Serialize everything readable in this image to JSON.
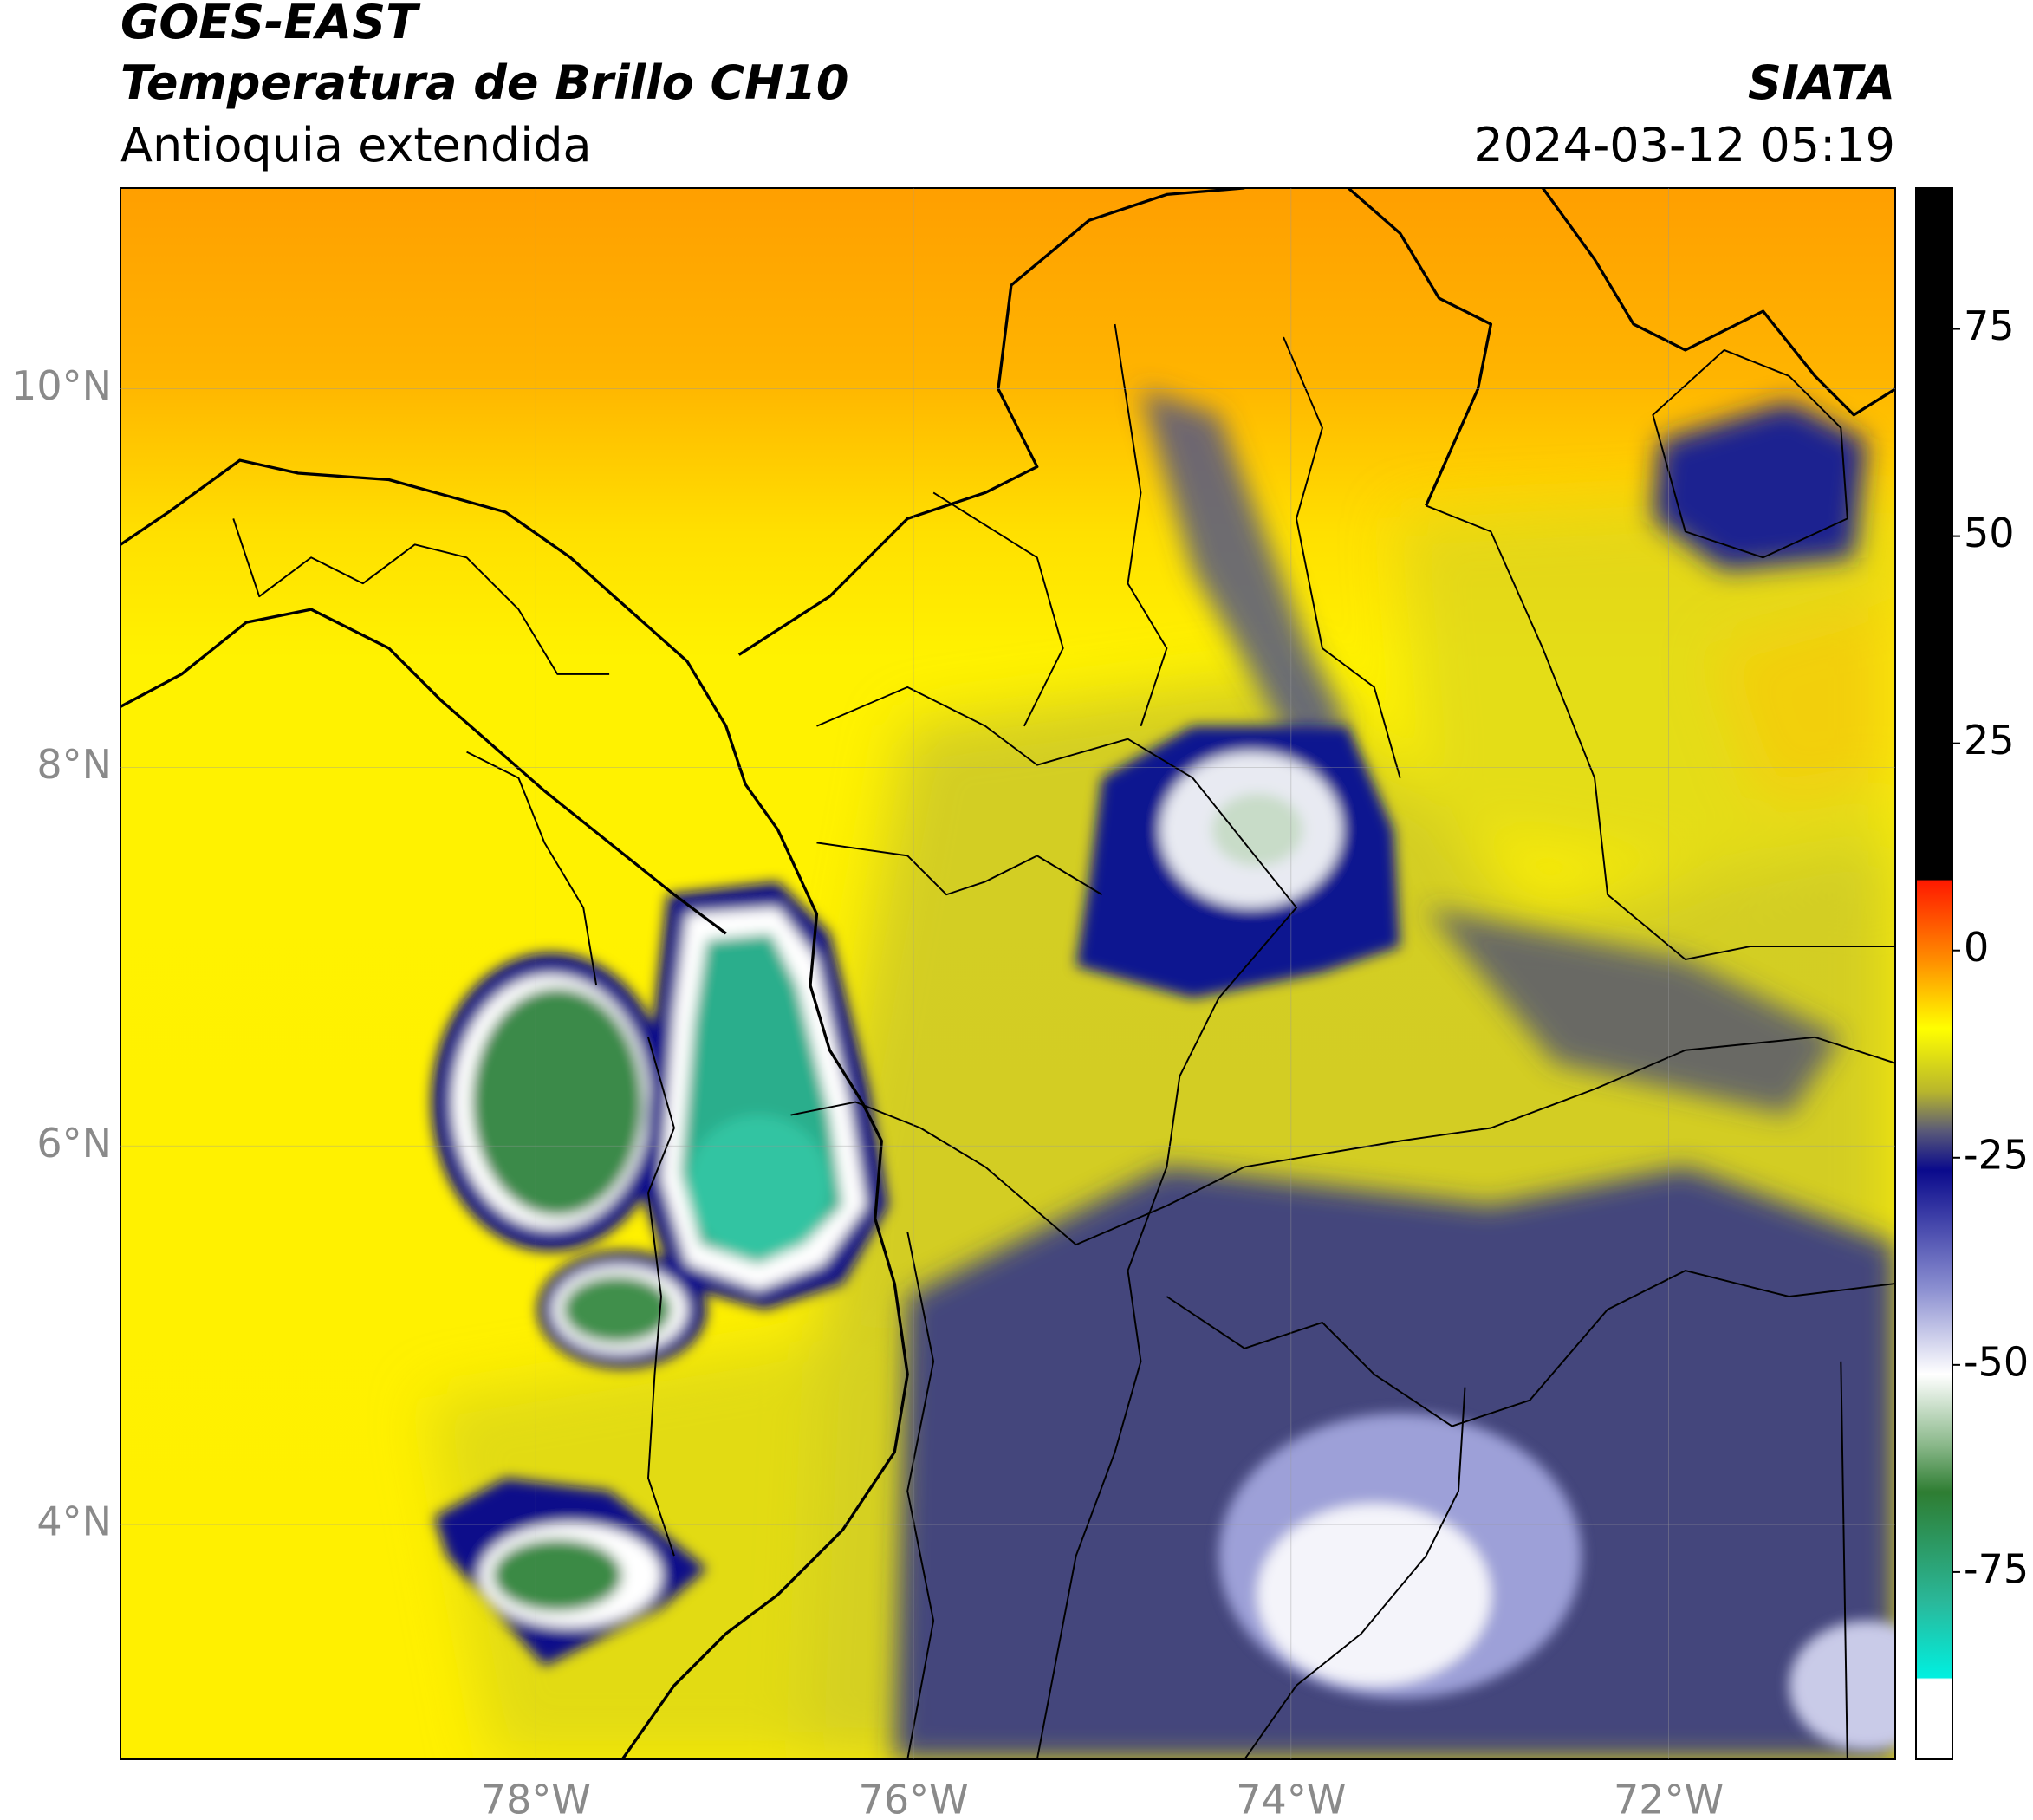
{
  "header": {
    "title": "GOES-EAST",
    "subtitle": "Temperatura de Brillo CH10",
    "region": "Antioquia extendida",
    "source": "SIATA",
    "datetime": "2024-03-12 05:19"
  },
  "map": {
    "lonlim": [
      -80.2,
      -70.8
    ],
    "latlim": [
      2.76,
      11.06
    ],
    "lon_ticks": [
      {
        "value": -78,
        "label": "78°W"
      },
      {
        "value": -76,
        "label": "76°W"
      },
      {
        "value": -74,
        "label": "74°W"
      },
      {
        "value": -72,
        "label": "72°W"
      }
    ],
    "lat_ticks": [
      {
        "value": 4,
        "label": "4°N"
      },
      {
        "value": 6,
        "label": "6°N"
      },
      {
        "value": 8,
        "label": "8°N"
      },
      {
        "value": 10,
        "label": "10°N"
      }
    ],
    "grid": true
  },
  "colorbar": {
    "lim": [
      -97.6,
      92
    ],
    "ticks": [
      -75,
      -50,
      -25,
      0,
      25,
      50,
      75
    ]
  }
}
